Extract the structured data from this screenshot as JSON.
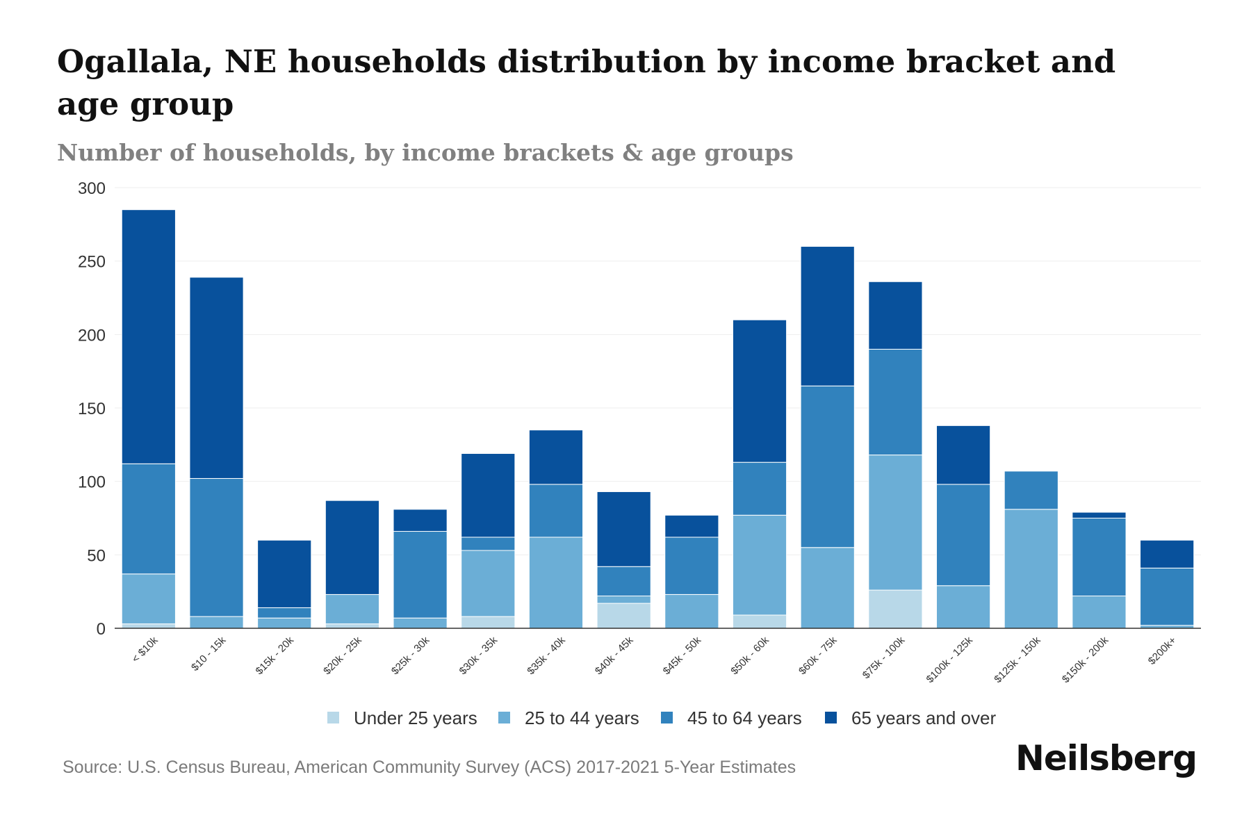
{
  "title": "Ogallala, NE households distribution by income bracket and age group",
  "subtitle": "Number of households, by income brackets & age groups",
  "source": "Source: U.S. Census Bureau, American Community Survey (ACS) 2017-2021 5-Year Estimates",
  "brand": "Neilsberg",
  "colors": {
    "under_25": "#b8d8e8",
    "age_25_44": "#6baed6",
    "age_45_64": "#3182bd",
    "age_65_plus": "#08519c",
    "grid": "#eeeeee",
    "axis": "#333333",
    "tick_text": "#333333"
  },
  "chart_data": {
    "type": "bar",
    "stacked": true,
    "title": "Ogallala, NE households distribution by income bracket and age group",
    "xlabel": "",
    "ylabel": "",
    "ylim": [
      0,
      300
    ],
    "yticks": [
      0,
      50,
      100,
      150,
      200,
      250,
      300
    ],
    "grid": true,
    "legend_position": "bottom",
    "categories": [
      "< $10k",
      "$10 - 15k",
      "$15k - 20k",
      "$20k - 25k",
      "$25k - 30k",
      "$30k - 35k",
      "$35k - 40k",
      "$40k - 45k",
      "$45k - 50k",
      "$50k - 60k",
      "$60k - 75k",
      "$75k - 100k",
      "$100k - 125k",
      "$125k - 150k",
      "$150k - 200k",
      "$200k+"
    ],
    "series": [
      {
        "name": "Under 25 years",
        "color_key": "under_25",
        "values": [
          3,
          0,
          0,
          3,
          0,
          8,
          0,
          17,
          0,
          9,
          0,
          26,
          0,
          0,
          0,
          0
        ]
      },
      {
        "name": "25 to 44 years",
        "color_key": "age_25_44",
        "values": [
          34,
          8,
          7,
          20,
          7,
          45,
          62,
          5,
          23,
          68,
          55,
          92,
          29,
          81,
          22,
          2
        ]
      },
      {
        "name": "45 to 64 years",
        "color_key": "age_45_64",
        "values": [
          75,
          94,
          7,
          0,
          59,
          9,
          36,
          20,
          39,
          36,
          110,
          72,
          69,
          26,
          53,
          39
        ]
      },
      {
        "name": "65 years and over",
        "color_key": "age_65_plus",
        "values": [
          173,
          137,
          46,
          64,
          15,
          57,
          37,
          51,
          15,
          97,
          95,
          46,
          40,
          0,
          4,
          19
        ]
      }
    ]
  }
}
